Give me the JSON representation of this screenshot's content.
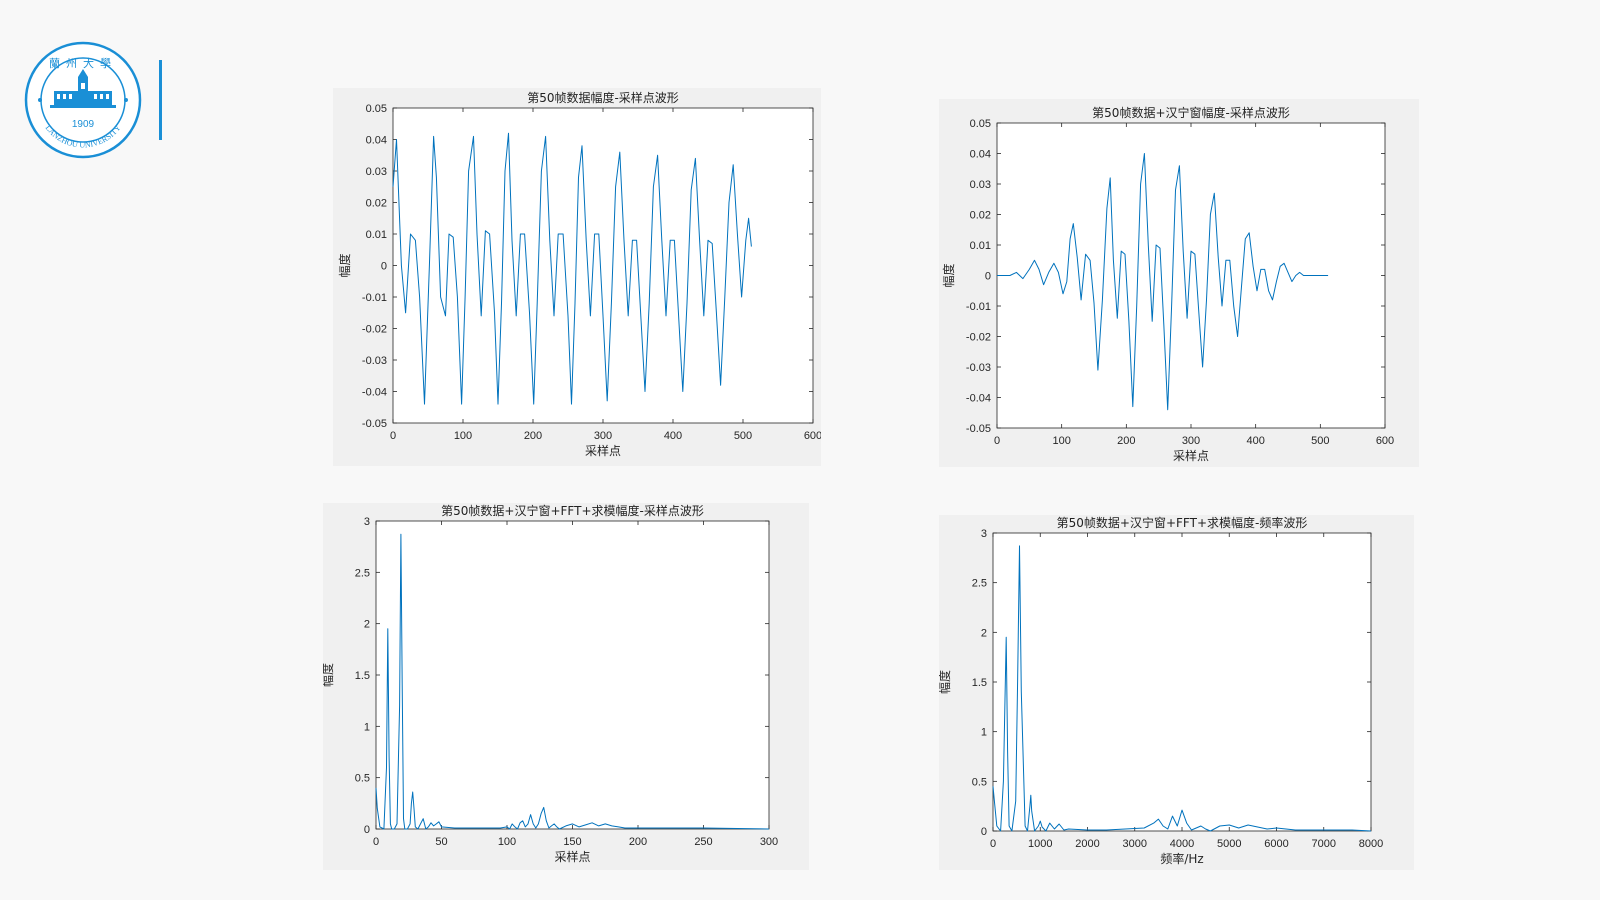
{
  "logo": {
    "text_top": "蘭州大學",
    "text_year": "1909",
    "text_bottom": "LANZHOU UNIVERSITY",
    "color": "#1a8fd6"
  },
  "line_color": "#0072bd",
  "chart_data": [
    {
      "type": "line",
      "title": "第50帧数据幅度-采样点波形",
      "xlabel": "采样点",
      "ylabel": "幅度",
      "xlim": [
        0,
        600
      ],
      "ylim": [
        -0.05,
        0.05
      ],
      "xticks": [
        "0",
        "100",
        "200",
        "300",
        "400",
        "500",
        "600"
      ],
      "yticks": [
        "0.05",
        "0.04",
        "0.03",
        "0.02",
        "0.01",
        "0",
        "-0.01",
        "-0.02",
        "-0.03",
        "-0.04",
        "-0.05"
      ],
      "x": [
        0,
        5,
        12,
        18,
        25,
        32,
        38,
        45,
        52,
        58,
        62,
        68,
        75,
        80,
        86,
        92,
        98,
        103,
        108,
        115,
        120,
        126,
        132,
        138,
        145,
        150,
        155,
        160,
        165,
        170,
        176,
        182,
        188,
        195,
        201,
        206,
        212,
        218,
        224,
        230,
        236,
        243,
        250,
        255,
        260,
        265,
        270,
        276,
        282,
        288,
        294,
        300,
        306,
        312,
        318,
        324,
        330,
        336,
        342,
        348,
        354,
        360,
        366,
        372,
        378,
        384,
        390,
        396,
        402,
        408,
        414,
        420,
        426,
        432,
        438,
        444,
        450,
        456,
        462,
        468,
        474,
        480,
        486,
        492,
        498,
        504,
        508,
        512
      ],
      "y": [
        0.025,
        0.04,
        0.0,
        -0.015,
        0.01,
        0.008,
        -0.01,
        -0.044,
        0.0,
        0.041,
        0.028,
        -0.01,
        -0.016,
        0.01,
        0.009,
        -0.01,
        -0.044,
        -0.01,
        0.03,
        0.041,
        0.01,
        -0.016,
        0.011,
        0.01,
        -0.015,
        -0.044,
        -0.012,
        0.03,
        0.042,
        0.008,
        -0.016,
        0.01,
        0.01,
        -0.015,
        -0.044,
        -0.012,
        0.03,
        0.041,
        0.008,
        -0.016,
        0.01,
        0.01,
        -0.016,
        -0.044,
        -0.012,
        0.028,
        0.038,
        0.008,
        -0.016,
        0.01,
        0.01,
        -0.016,
        -0.043,
        -0.012,
        0.025,
        0.036,
        0.008,
        -0.016,
        0.008,
        0.008,
        -0.016,
        -0.04,
        -0.012,
        0.025,
        0.035,
        0.008,
        -0.016,
        0.008,
        0.008,
        -0.016,
        -0.04,
        -0.012,
        0.024,
        0.034,
        0.008,
        -0.016,
        0.008,
        0.007,
        -0.015,
        -0.038,
        -0.01,
        0.02,
        0.032,
        0.01,
        -0.01,
        0.008,
        0.015,
        0.006
      ]
    },
    {
      "type": "line",
      "title": "第50帧数据+汉宁窗幅度-采样点波形",
      "xlabel": "采样点",
      "ylabel": "幅度",
      "xlim": [
        0,
        600
      ],
      "ylim": [
        -0.05,
        0.05
      ],
      "xticks": [
        "0",
        "100",
        "200",
        "300",
        "400",
        "500",
        "600"
      ],
      "yticks": [
        "0.05",
        "0.04",
        "0.03",
        "0.02",
        "0.01",
        "0",
        "-0.01",
        "-0.02",
        "-0.03",
        "-0.04",
        "-0.05"
      ],
      "x": [
        0,
        10,
        20,
        30,
        40,
        50,
        58,
        65,
        72,
        80,
        88,
        95,
        102,
        108,
        113,
        118,
        124,
        130,
        137,
        144,
        150,
        156,
        163,
        170,
        175,
        180,
        186,
        192,
        198,
        204,
        210,
        216,
        222,
        228,
        234,
        240,
        246,
        252,
        258,
        264,
        270,
        276,
        282,
        288,
        294,
        300,
        306,
        312,
        318,
        324,
        330,
        336,
        342,
        348,
        354,
        360,
        366,
        372,
        378,
        384,
        390,
        396,
        402,
        408,
        414,
        420,
        426,
        432,
        438,
        444,
        450,
        456,
        462,
        468,
        474,
        480,
        490,
        500,
        512
      ],
      "y": [
        0.0,
        0.0,
        0.0,
        0.001,
        -0.001,
        0.002,
        0.005,
        0.002,
        -0.003,
        0.001,
        0.004,
        0.001,
        -0.006,
        -0.002,
        0.012,
        0.017,
        0.006,
        -0.008,
        0.007,
        0.005,
        -0.009,
        -0.031,
        -0.008,
        0.022,
        0.032,
        0.005,
        -0.014,
        0.008,
        0.007,
        -0.015,
        -0.043,
        -0.01,
        0.03,
        0.04,
        0.01,
        -0.015,
        0.01,
        0.009,
        -0.016,
        -0.044,
        -0.01,
        0.028,
        0.036,
        0.008,
        -0.014,
        0.008,
        0.007,
        -0.012,
        -0.03,
        -0.008,
        0.02,
        0.027,
        0.006,
        -0.01,
        0.005,
        0.005,
        -0.01,
        -0.02,
        -0.004,
        0.012,
        0.014,
        0.003,
        -0.005,
        0.002,
        0.002,
        -0.005,
        -0.008,
        -0.002,
        0.003,
        0.004,
        0.001,
        -0.002,
        0.0,
        0.001,
        0.0,
        0.0,
        0.0,
        0.0,
        0.0
      ]
    },
    {
      "type": "line",
      "title": "第50帧数据+汉宁窗+FFT+求模幅度-采样点波形",
      "xlabel": "采样点",
      "ylabel": "幅度",
      "xlim": [
        0,
        300
      ],
      "ylim": [
        0,
        3
      ],
      "xticks": [
        "0",
        "50",
        "100",
        "150",
        "200",
        "250",
        "300"
      ],
      "yticks": [
        "3",
        "2.5",
        "2",
        "1.5",
        "1",
        "0.5",
        "0"
      ],
      "x": [
        0,
        1,
        3,
        6,
        8,
        9,
        10,
        11,
        12,
        14,
        16,
        18,
        19,
        20,
        21,
        22,
        24,
        26,
        27,
        28,
        29,
        30,
        32,
        34,
        36,
        37,
        38,
        40,
        42,
        44,
        46,
        48,
        50,
        60,
        80,
        95,
        100,
        102,
        104,
        106,
        108,
        110,
        112,
        114,
        116,
        118,
        120,
        122,
        124,
        126,
        128,
        130,
        132,
        134,
        136,
        138,
        140,
        145,
        150,
        155,
        160,
        165,
        170,
        175,
        180,
        185,
        190,
        200,
        220,
        250,
        300
      ],
      "y": [
        0.4,
        0.2,
        0.02,
        0.0,
        0.6,
        1.95,
        0.7,
        0.05,
        0.0,
        0.0,
        0.05,
        1.2,
        2.87,
        1.4,
        0.1,
        0.0,
        0.0,
        0.05,
        0.25,
        0.36,
        0.2,
        0.02,
        0.0,
        0.05,
        0.1,
        0.05,
        0.0,
        0.02,
        0.06,
        0.03,
        0.05,
        0.07,
        0.02,
        0.01,
        0.01,
        0.01,
        0.02,
        0.0,
        0.05,
        0.02,
        0.0,
        0.06,
        0.08,
        0.02,
        0.05,
        0.14,
        0.05,
        0.01,
        0.05,
        0.15,
        0.21,
        0.08,
        0.01,
        0.03,
        0.05,
        0.02,
        0.0,
        0.03,
        0.05,
        0.02,
        0.04,
        0.06,
        0.03,
        0.05,
        0.03,
        0.02,
        0.01,
        0.01,
        0.01,
        0.01,
        0.0
      ]
    },
    {
      "type": "line",
      "title": "第50帧数据+汉宁窗+FFT+求模幅度-频率波形",
      "xlabel": "频率/Hz",
      "ylabel": "幅度",
      "xlim": [
        0,
        8000
      ],
      "ylim": [
        0,
        3
      ],
      "xticks": [
        "0",
        "1000",
        "2000",
        "3000",
        "4000",
        "5000",
        "6000",
        "7000",
        "8000"
      ],
      "yticks": [
        "3",
        "2.5",
        "2",
        "1.5",
        "1",
        "0.5",
        "0"
      ],
      "x": [
        0,
        30,
        80,
        160,
        220,
        280,
        310,
        340,
        400,
        480,
        520,
        560,
        600,
        680,
        730,
        780,
        800,
        820,
        880,
        960,
        1000,
        1040,
        1120,
        1200,
        1300,
        1400,
        1500,
        1600,
        2000,
        2400,
        2800,
        3200,
        3400,
        3500,
        3600,
        3700,
        3800,
        3900,
        4000,
        4100,
        4200,
        4400,
        4500,
        4600,
        4800,
        5000,
        5200,
        5400,
        5600,
        5800,
        6000,
        6400,
        7000,
        7600,
        8000
      ],
      "y": [
        0.45,
        0.3,
        0.05,
        0.0,
        0.5,
        1.95,
        0.8,
        0.05,
        0.0,
        0.3,
        1.5,
        2.87,
        1.4,
        0.05,
        0.0,
        0.25,
        0.36,
        0.2,
        0.0,
        0.05,
        0.1,
        0.04,
        0.0,
        0.08,
        0.02,
        0.07,
        0.01,
        0.02,
        0.01,
        0.01,
        0.02,
        0.03,
        0.08,
        0.12,
        0.05,
        0.02,
        0.15,
        0.05,
        0.21,
        0.08,
        0.01,
        0.05,
        0.02,
        0.0,
        0.05,
        0.06,
        0.03,
        0.06,
        0.04,
        0.02,
        0.03,
        0.01,
        0.01,
        0.01,
        0.0
      ]
    }
  ]
}
